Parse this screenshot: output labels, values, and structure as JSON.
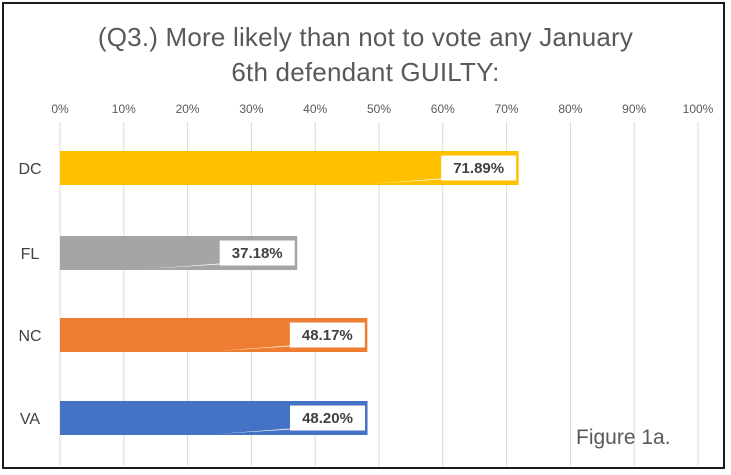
{
  "chart_data": {
    "type": "bar",
    "orientation": "horizontal",
    "title_lines": [
      "(Q3.) More likely than not to vote any January",
      "6th defendant GUILTY:"
    ],
    "categories": [
      "DC",
      "FL",
      "NC",
      "VA"
    ],
    "values": [
      71.89,
      37.18,
      48.17,
      48.2
    ],
    "data_labels": [
      "71.89%",
      "37.18%",
      "48.17%",
      "48.20%"
    ],
    "bar_colors": [
      "#ffc000",
      "#a5a5a5",
      "#ed7d31",
      "#4472c4"
    ],
    "xlim": [
      0,
      100
    ],
    "x_ticks": [
      0,
      10,
      20,
      30,
      40,
      50,
      60,
      70,
      80,
      90,
      100
    ],
    "x_tick_labels": [
      "0%",
      "10%",
      "20%",
      "30%",
      "40%",
      "50%",
      "60%",
      "70%",
      "80%",
      "90%",
      "100%"
    ],
    "x_axis_position": "top",
    "grid": true,
    "legend": "none"
  },
  "caption": "Figure 1a."
}
